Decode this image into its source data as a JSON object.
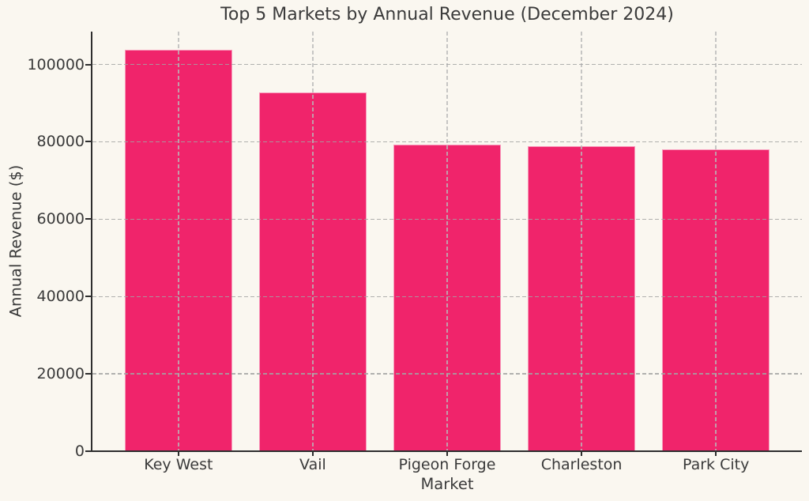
{
  "figure": {
    "background_color": "#FAF7F0",
    "text_color": "#3A3A3A",
    "bar_color": "#F0246B",
    "bar_edge_color": "rgba(255,255,255,0.55)",
    "grid_color": "#A3A3A3",
    "spine_color": "#2E2E2E",
    "grid_style": "dashed"
  },
  "chart_data": {
    "type": "bar",
    "title": "Top 5 Markets by Annual Revenue (December 2024)",
    "xlabel": "Market",
    "ylabel": "Annual Revenue ($)",
    "categories": [
      "Key West",
      "Vail",
      "Pigeon Forge",
      "Charleston",
      "Park City"
    ],
    "values": [
      103900,
      92800,
      79200,
      78900,
      78100
    ],
    "ylim": [
      0,
      108500
    ],
    "y_ticks": [
      0,
      20000,
      40000,
      60000,
      80000,
      100000
    ],
    "grid": "dashed grey gridlines on both axes, drawn over bars",
    "legend_position": "none"
  }
}
